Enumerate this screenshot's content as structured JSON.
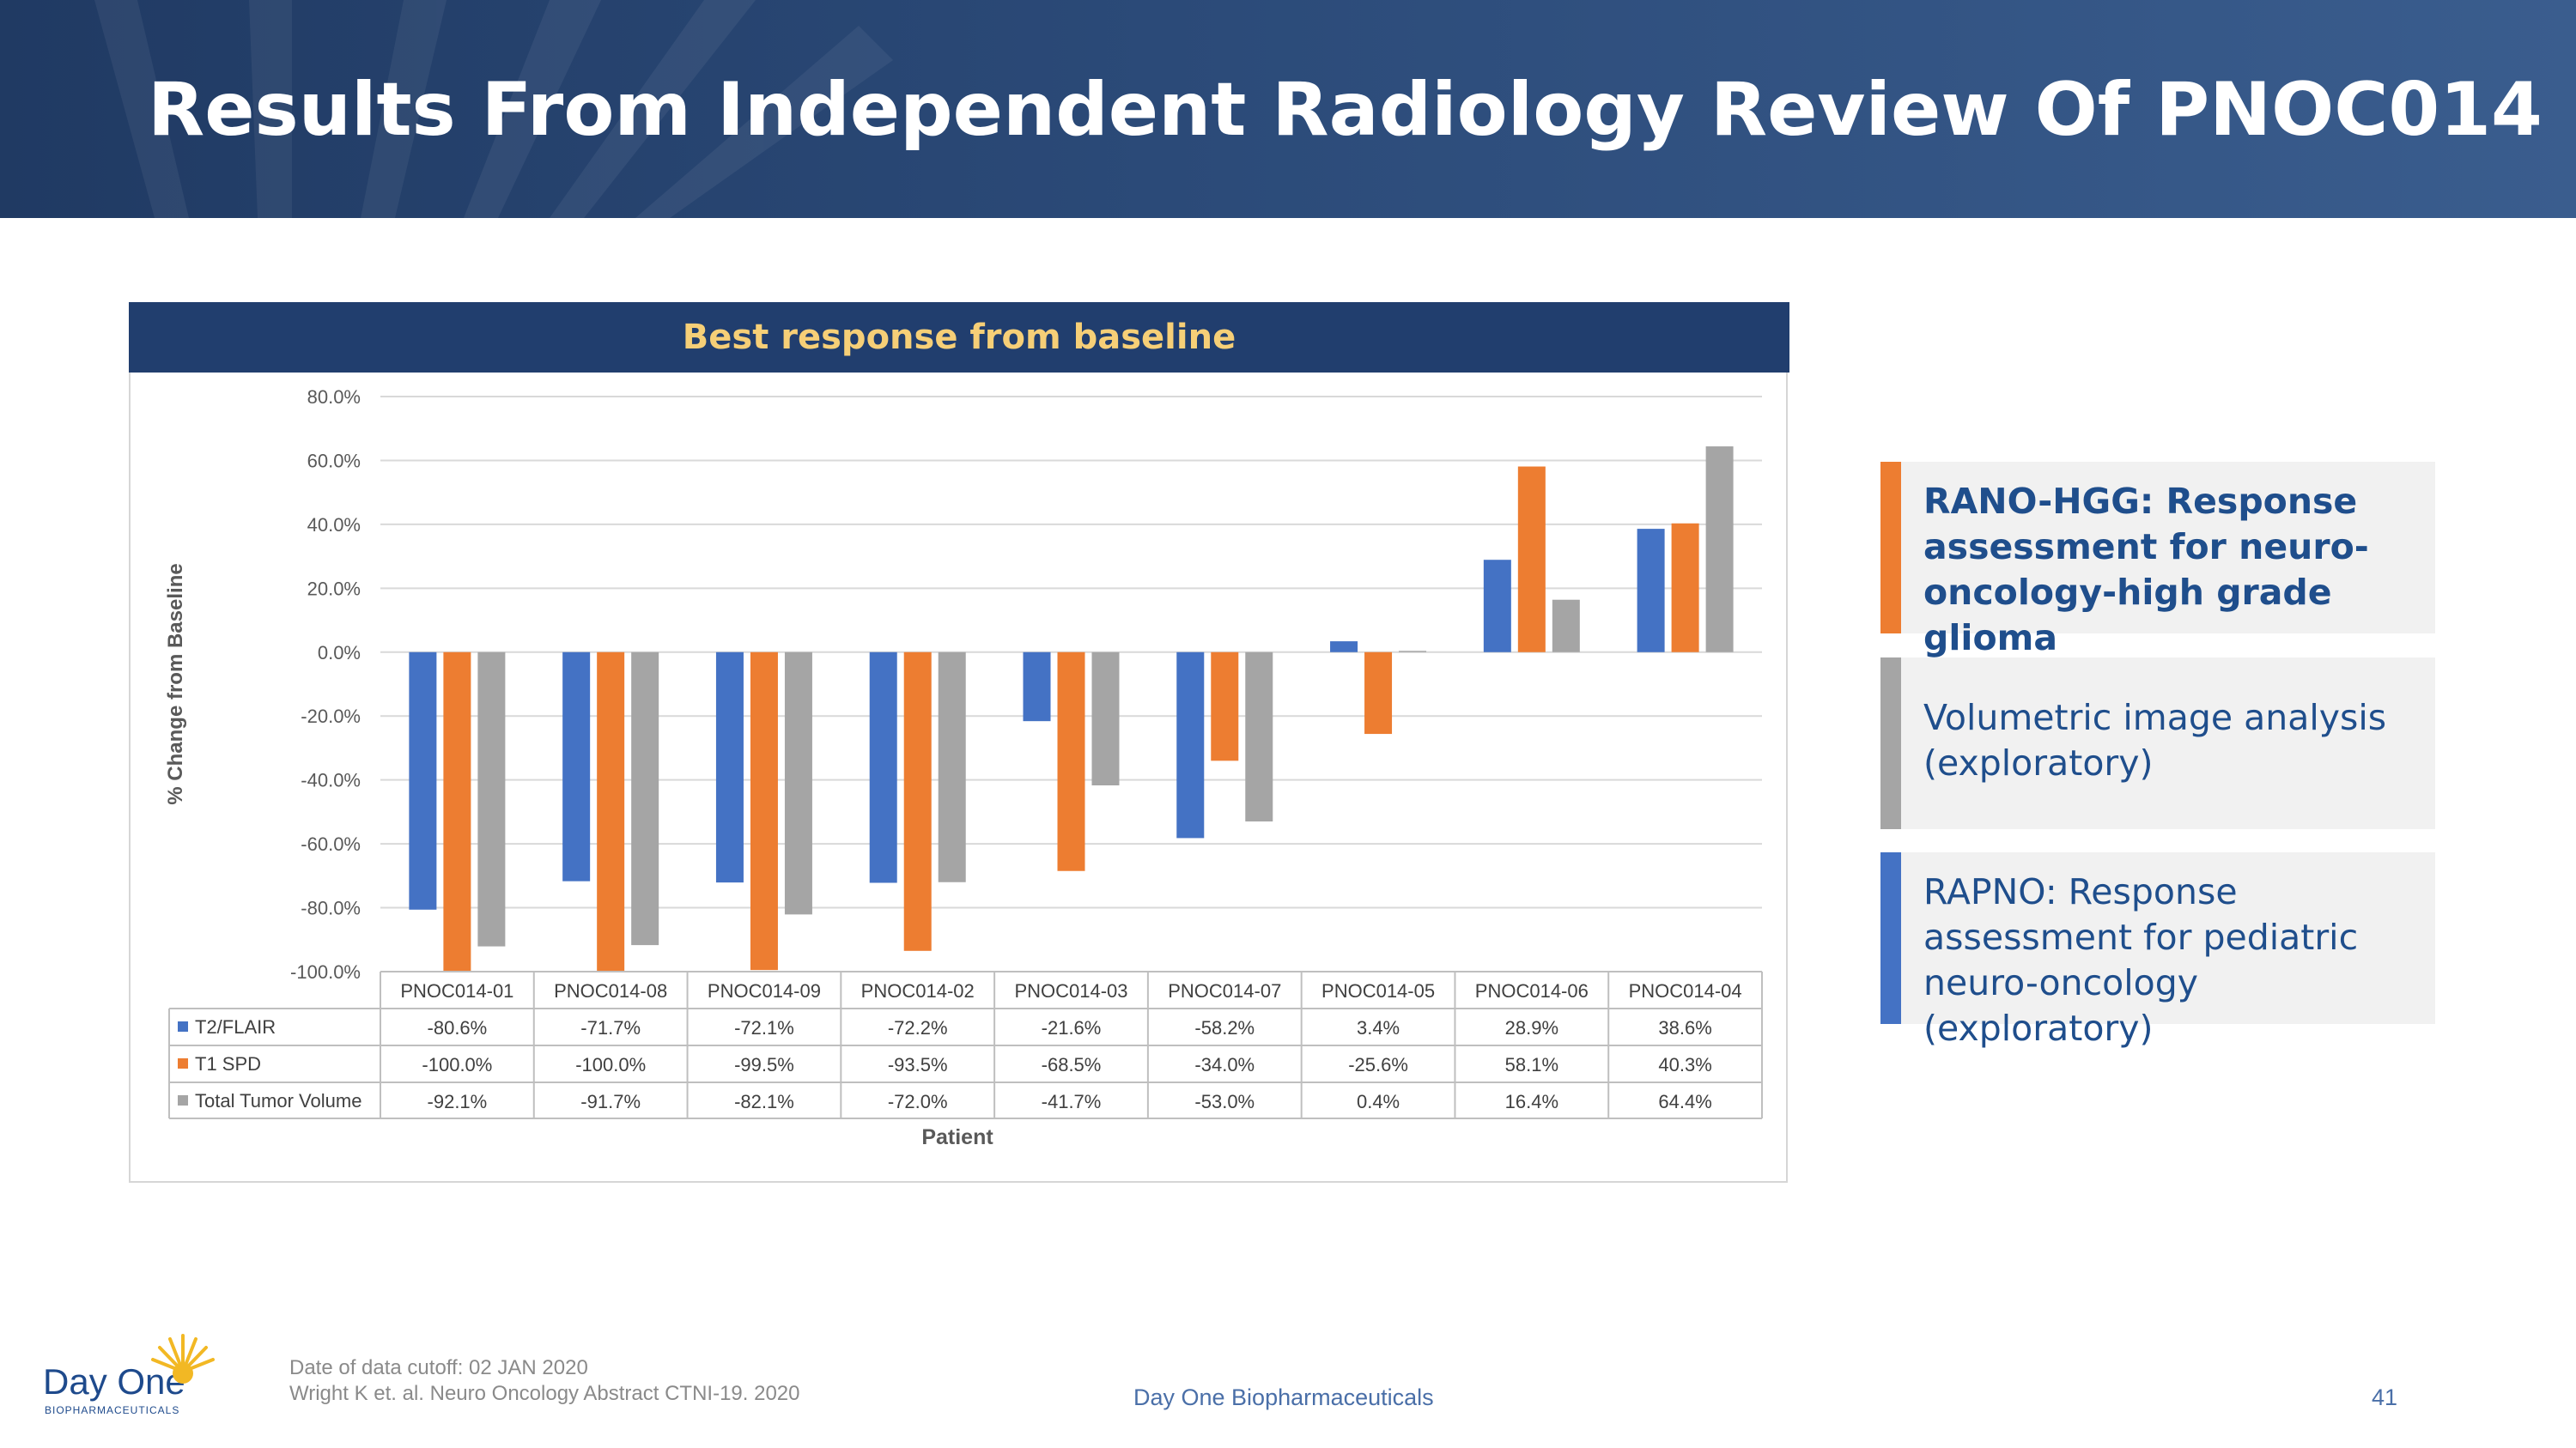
{
  "slide": {
    "title": "Results From Independent Radiology Review Of PNOC014",
    "chart_header": "Best response from baseline",
    "footer_cutoff": "Date of data cutoff:  02 JAN 2020",
    "footer_reference": "Wright K et. al.  Neuro Oncology Abstract CTNI-19. 2020",
    "footer_company": "Day One Biopharmaceuticals",
    "page_number": "41",
    "logo_name": "Day One",
    "logo_sub": "BIOPHARMACEUTICALS"
  },
  "legend_boxes": [
    {
      "text": "RANO-HGG: Response assessment for neuro-oncology-high grade glioma",
      "stripe_color": "#ed7d31",
      "text_color": "#1f4e8c",
      "bold": true
    },
    {
      "text": "Volumetric image analysis (exploratory)",
      "stripe_color": "#a5a5a5",
      "text_color": "#1f4e8c",
      "bold": false
    },
    {
      "text": "RAPNO: Response assessment for pediatric neuro-oncology (exploratory)",
      "stripe_color": "#4472c4",
      "text_color": "#1f4e8c",
      "bold": false
    }
  ],
  "chart_data": {
    "type": "bar",
    "categories": [
      "PNOC014-01",
      "PNOC014-08",
      "PNOC014-09",
      "PNOC014-02",
      "PNOC014-03",
      "PNOC014-07",
      "PNOC014-05",
      "PNOC014-06",
      "PNOC014-04"
    ],
    "series": [
      {
        "name": "T2/FLAIR",
        "color": "#4472c4",
        "values": [
          -80.6,
          -71.7,
          -72.1,
          -72.2,
          -21.6,
          -58.2,
          3.4,
          28.9,
          38.6
        ],
        "labels": [
          "-80.6%",
          "-71.7%",
          "-72.1%",
          "-72.2%",
          "-21.6%",
          "-58.2%",
          "3.4%",
          "28.9%",
          "38.6%"
        ]
      },
      {
        "name": "T1 SPD",
        "color": "#ed7d31",
        "values": [
          -100.0,
          -100.0,
          -99.5,
          -93.5,
          -68.5,
          -34.0,
          -25.6,
          58.1,
          40.3
        ],
        "labels": [
          "-100.0%",
          "-100.0%",
          "-99.5%",
          "-93.5%",
          "-68.5%",
          "-34.0%",
          "-25.6%",
          "58.1%",
          "40.3%"
        ]
      },
      {
        "name": "Total Tumor Volume",
        "color": "#a5a5a5",
        "values": [
          -92.1,
          -91.7,
          -82.1,
          -72.0,
          -41.7,
          -53.0,
          0.4,
          16.4,
          64.4
        ],
        "labels": [
          "-92.1%",
          "-91.7%",
          "-82.1%",
          "-72.0%",
          "-41.7%",
          "-53.0%",
          "0.4%",
          "16.4%",
          "64.4%"
        ]
      }
    ],
    "ylabel": "% Change from Baseline",
    "xlabel": "Patient",
    "ylim": [
      -100,
      80
    ],
    "yticks": [
      "80.0%",
      "60.0%",
      "40.0%",
      "20.0%",
      "0.0%",
      "-20.0%",
      "-40.0%",
      "-60.0%",
      "-80.0%",
      "-100.0%"
    ],
    "ytick_values": [
      80,
      60,
      40,
      20,
      0,
      -20,
      -40,
      -60,
      -80,
      -100
    ],
    "grid": true,
    "legend": "data table below chart"
  }
}
